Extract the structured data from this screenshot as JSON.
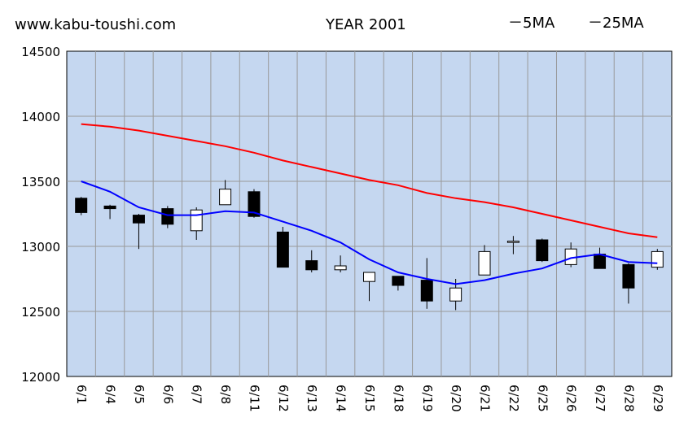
{
  "header": {
    "site": "www.kabu-toushi.com",
    "year_title": "YEAR 2001",
    "legend_ma5": "－5MA",
    "legend_ma25": "－25MA"
  },
  "colors": {
    "plot_bg": "#c5d7f0",
    "grid": "#999999",
    "ma5": "#0000ff",
    "ma25": "#ff0000",
    "candle_up": "#ffffff",
    "candle_down": "#000000"
  },
  "chart_data": {
    "type": "candlestick",
    "categories": [
      "6/1",
      "6/4",
      "6/5",
      "6/6",
      "6/7",
      "6/8",
      "6/11",
      "6/12",
      "6/13",
      "6/14",
      "6/15",
      "6/18",
      "6/19",
      "6/20",
      "6/21",
      "6/22",
      "6/25",
      "6/26",
      "6/27",
      "6/28",
      "6/29"
    ],
    "ylim": [
      12000,
      14500
    ],
    "yticks": [
      "12000",
      "12500",
      "13000",
      "13500",
      "14000",
      "14500"
    ],
    "candles": [
      {
        "open": 13370,
        "close": 13260,
        "high": 13380,
        "low": 13240
      },
      {
        "open": 13310,
        "close": 13290,
        "high": 13320,
        "low": 13210
      },
      {
        "open": 13240,
        "close": 13180,
        "high": 13250,
        "low": 12980
      },
      {
        "open": 13290,
        "close": 13170,
        "high": 13310,
        "low": 13140
      },
      {
        "open": 13120,
        "close": 13280,
        "high": 13300,
        "low": 13050
      },
      {
        "open": 13320,
        "close": 13440,
        "high": 13510,
        "low": 13320
      },
      {
        "open": 13420,
        "close": 13230,
        "high": 13440,
        "low": 13220
      },
      {
        "open": 13110,
        "close": 12840,
        "high": 13150,
        "low": 12840
      },
      {
        "open": 12890,
        "close": 12820,
        "high": 12970,
        "low": 12800
      },
      {
        "open": 12820,
        "close": 12850,
        "high": 12930,
        "low": 12800
      },
      {
        "open": 12730,
        "close": 12800,
        "high": 12800,
        "low": 12580
      },
      {
        "open": 12770,
        "close": 12700,
        "high": 12770,
        "low": 12660
      },
      {
        "open": 12740,
        "close": 12580,
        "high": 12910,
        "low": 12520
      },
      {
        "open": 12580,
        "close": 12680,
        "high": 12750,
        "low": 12510
      },
      {
        "open": 12780,
        "close": 12960,
        "high": 13010,
        "low": 12780
      },
      {
        "open": 13030,
        "close": 13040,
        "high": 13080,
        "low": 12940
      },
      {
        "open": 13050,
        "close": 12890,
        "high": 13060,
        "low": 12880
      },
      {
        "open": 12860,
        "close": 12980,
        "high": 13030,
        "low": 12840
      },
      {
        "open": 12940,
        "close": 12830,
        "high": 12990,
        "low": 12830
      },
      {
        "open": 12860,
        "close": 12680,
        "high": 12870,
        "low": 12560
      },
      {
        "open": 12840,
        "close": 12960,
        "high": 12980,
        "low": 12820
      }
    ],
    "series": [
      {
        "name": "5MA",
        "values": [
          13500,
          13420,
          13300,
          13240,
          13240,
          13270,
          13260,
          13190,
          13120,
          13030,
          12900,
          12800,
          12750,
          12710,
          12740,
          12790,
          12830,
          12910,
          12940,
          12880,
          12870
        ]
      },
      {
        "name": "25MA",
        "values": [
          13940,
          13920,
          13890,
          13850,
          13810,
          13770,
          13720,
          13660,
          13610,
          13560,
          13510,
          13470,
          13410,
          13370,
          13340,
          13300,
          13250,
          13200,
          13150,
          13100,
          13070
        ]
      }
    ]
  }
}
